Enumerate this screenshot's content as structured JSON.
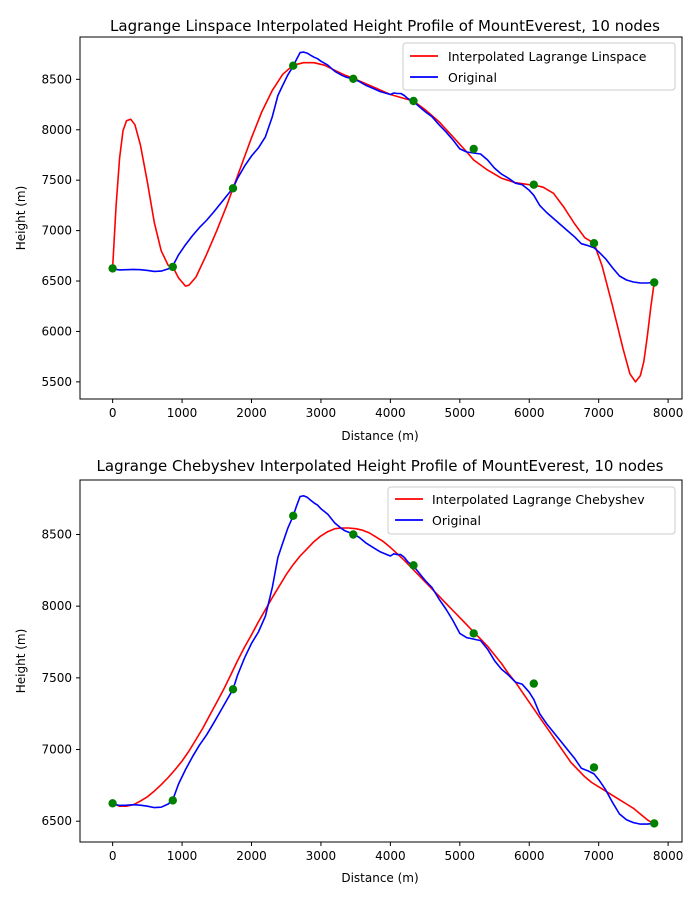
{
  "colors": {
    "interpolated": "#ff0000",
    "original": "#0000ff",
    "nodes": "#008000"
  },
  "chart_data": [
    {
      "type": "line",
      "title": "Lagrange Linspace Interpolated Height Profile of MountEverest, 10 nodes",
      "xlabel": "Distance (m)",
      "ylabel": "Height (m)",
      "xlim": [
        -470,
        8200
      ],
      "ylim": [
        5330,
        8920
      ],
      "xticks": [
        0,
        1000,
        2000,
        3000,
        4000,
        5000,
        6000,
        7000,
        8000
      ],
      "yticks": [
        5500,
        6000,
        6500,
        7000,
        7500,
        8000,
        8500
      ],
      "legend": "top-right",
      "series": [
        {
          "name": "Interpolated Lagrange Linspace",
          "color": "#ff0000",
          "x": [
            0,
            50,
            100,
            150,
            200,
            260,
            320,
            400,
            500,
            600,
            700,
            800,
            866,
            950,
            1050,
            1100,
            1200,
            1350,
            1500,
            1650,
            1733,
            1850,
            2000,
            2150,
            2300,
            2450,
            2600,
            2750,
            2900,
            3050,
            3200,
            3350,
            3466,
            3600,
            3800,
            4000,
            4200,
            4333,
            4500,
            4700,
            4900,
            5100,
            5200,
            5400,
            5600,
            5800,
            6000,
            6066,
            6200,
            6350,
            6500,
            6650,
            6800,
            6933,
            7050,
            7200,
            7350,
            7450,
            7530,
            7600,
            7650,
            7700,
            7750,
            7800
          ],
          "y": [
            6625,
            7250,
            7720,
            7990,
            8090,
            8105,
            8050,
            7850,
            7480,
            7080,
            6800,
            6655,
            6640,
            6530,
            6450,
            6460,
            6540,
            6760,
            7000,
            7260,
            7420,
            7640,
            7920,
            8180,
            8390,
            8550,
            8640,
            8665,
            8665,
            8640,
            8590,
            8540,
            8510,
            8470,
            8410,
            8350,
            8310,
            8285,
            8200,
            8080,
            7930,
            7780,
            7700,
            7600,
            7520,
            7475,
            7455,
            7452,
            7430,
            7370,
            7230,
            7070,
            6930,
            6875,
            6650,
            6250,
            5830,
            5580,
            5500,
            5560,
            5700,
            5950,
            6240,
            6485
          ]
        },
        {
          "name": "Original",
          "color": "#0000ff",
          "x": [
            0,
            100,
            200,
            300,
            400,
            500,
            600,
            700,
            800,
            866,
            950,
            1050,
            1150,
            1250,
            1350,
            1450,
            1550,
            1650,
            1733,
            1800,
            1900,
            2000,
            2100,
            2200,
            2300,
            2380,
            2450,
            2520,
            2600,
            2650,
            2700,
            2750,
            2800,
            2850,
            2900,
            2950,
            3000,
            3050,
            3100,
            3150,
            3200,
            3250,
            3300,
            3350,
            3400,
            3466,
            3550,
            3650,
            3750,
            3850,
            3950,
            4000,
            4050,
            4100,
            4150,
            4200,
            4250,
            4300,
            4333,
            4400,
            4500,
            4600,
            4700,
            4800,
            4900,
            5000,
            5100,
            5150,
            5200,
            5300,
            5400,
            5500,
            5600,
            5700,
            5800,
            5900,
            6000,
            6066,
            6150,
            6250,
            6350,
            6450,
            6550,
            6650,
            6750,
            6850,
            6933,
            7000,
            7100,
            7200,
            7300,
            7400,
            7500,
            7600,
            7700,
            7780
          ],
          "y": [
            6620,
            6610,
            6612,
            6615,
            6612,
            6605,
            6595,
            6598,
            6620,
            6650,
            6760,
            6860,
            6950,
            7030,
            7100,
            7180,
            7265,
            7350,
            7420,
            7520,
            7640,
            7740,
            7820,
            7930,
            8130,
            8340,
            8440,
            8540,
            8630,
            8700,
            8765,
            8770,
            8760,
            8740,
            8720,
            8705,
            8680,
            8660,
            8640,
            8610,
            8580,
            8560,
            8540,
            8525,
            8515,
            8505,
            8480,
            8440,
            8410,
            8380,
            8360,
            8350,
            8365,
            8360,
            8360,
            8340,
            8310,
            8290,
            8280,
            8240,
            8180,
            8130,
            8050,
            7980,
            7900,
            7810,
            7780,
            7775,
            7770,
            7760,
            7700,
            7620,
            7560,
            7520,
            7470,
            7455,
            7400,
            7350,
            7250,
            7180,
            7120,
            7060,
            7000,
            6940,
            6870,
            6850,
            6830,
            6790,
            6720,
            6630,
            6550,
            6510,
            6490,
            6480,
            6480,
            6485
          ]
        }
      ],
      "nodes": {
        "x": [
          0,
          866,
          1733,
          2600,
          3466,
          4333,
          5200,
          6066,
          6933,
          7800
        ],
        "y": [
          6625,
          6640,
          7420,
          8635,
          8505,
          8285,
          7810,
          7455,
          6875,
          6485
        ]
      }
    },
    {
      "type": "line",
      "title": "Lagrange Chebyshev Interpolated Height Profile of MountEverest, 10 nodes",
      "xlabel": "Distance (m)",
      "ylabel": "Height (m)",
      "xlim": [
        -470,
        8200
      ],
      "ylim": [
        6355,
        8880
      ],
      "xticks": [
        0,
        1000,
        2000,
        3000,
        4000,
        5000,
        6000,
        7000,
        8000
      ],
      "yticks": [
        6500,
        7000,
        7500,
        8000,
        8500
      ],
      "legend": "top-right",
      "series": [
        {
          "name": "Interpolated Lagrange Chebyshev",
          "color": "#ff0000",
          "x": [
            0,
            100,
            200,
            300,
            400,
            500,
            600,
            700,
            800,
            900,
            1000,
            1100,
            1200,
            1300,
            1400,
            1500,
            1600,
            1700,
            1800,
            1900,
            2000,
            2100,
            2200,
            2300,
            2400,
            2500,
            2600,
            2700,
            2800,
            2900,
            3000,
            3100,
            3200,
            3300,
            3400,
            3500,
            3600,
            3700,
            3800,
            3900,
            4000,
            4100,
            4200,
            4300,
            4400,
            4500,
            4600,
            4700,
            4800,
            4900,
            5000,
            5100,
            5200,
            5300,
            5400,
            5500,
            5600,
            5700,
            5800,
            5900,
            6000,
            6100,
            6200,
            6300,
            6400,
            6500,
            6600,
            6700,
            6800,
            6900,
            7000,
            7100,
            7200,
            7300,
            7400,
            7500,
            7600,
            7700,
            7800
          ],
          "y": [
            6625,
            6605,
            6605,
            6615,
            6640,
            6670,
            6710,
            6755,
            6805,
            6860,
            6920,
            6990,
            7070,
            7150,
            7240,
            7330,
            7420,
            7520,
            7620,
            7715,
            7800,
            7890,
            7975,
            8060,
            8140,
            8220,
            8290,
            8350,
            8400,
            8450,
            8490,
            8520,
            8540,
            8545,
            8545,
            8540,
            8530,
            8510,
            8480,
            8450,
            8410,
            8365,
            8320,
            8270,
            8220,
            8170,
            8120,
            8070,
            8020,
            7970,
            7920,
            7870,
            7820,
            7770,
            7720,
            7660,
            7600,
            7530,
            7470,
            7400,
            7330,
            7260,
            7190,
            7120,
            7050,
            6980,
            6910,
            6860,
            6810,
            6770,
            6740,
            6710,
            6680,
            6650,
            6620,
            6590,
            6550,
            6510,
            6480
          ]
        },
        {
          "name": "Original",
          "color": "#0000ff",
          "x": [
            0,
            100,
            200,
            300,
            400,
            500,
            600,
            700,
            800,
            866,
            950,
            1050,
            1150,
            1250,
            1350,
            1450,
            1550,
            1650,
            1733,
            1800,
            1900,
            2000,
            2100,
            2200,
            2300,
            2380,
            2450,
            2520,
            2600,
            2650,
            2700,
            2750,
            2800,
            2850,
            2900,
            2950,
            3000,
            3050,
            3100,
            3150,
            3200,
            3250,
            3300,
            3350,
            3400,
            3466,
            3550,
            3650,
            3750,
            3850,
            3950,
            4000,
            4050,
            4100,
            4150,
            4200,
            4250,
            4300,
            4333,
            4400,
            4500,
            4600,
            4700,
            4800,
            4900,
            5000,
            5100,
            5150,
            5200,
            5300,
            5400,
            5500,
            5600,
            5700,
            5800,
            5900,
            6000,
            6066,
            6150,
            6250,
            6350,
            6450,
            6550,
            6650,
            6750,
            6850,
            6933,
            7000,
            7100,
            7200,
            7300,
            7400,
            7500,
            7600,
            7700,
            7780
          ],
          "y": [
            6620,
            6610,
            6612,
            6615,
            6612,
            6605,
            6595,
            6598,
            6620,
            6650,
            6760,
            6860,
            6950,
            7030,
            7100,
            7180,
            7265,
            7350,
            7420,
            7520,
            7640,
            7740,
            7820,
            7930,
            8130,
            8340,
            8440,
            8540,
            8630,
            8700,
            8765,
            8770,
            8760,
            8740,
            8720,
            8705,
            8680,
            8660,
            8640,
            8610,
            8580,
            8560,
            8540,
            8525,
            8515,
            8505,
            8480,
            8440,
            8410,
            8380,
            8360,
            8350,
            8365,
            8360,
            8360,
            8340,
            8310,
            8290,
            8280,
            8240,
            8180,
            8130,
            8050,
            7980,
            7900,
            7810,
            7780,
            7775,
            7770,
            7760,
            7700,
            7620,
            7560,
            7520,
            7470,
            7455,
            7400,
            7350,
            7250,
            7180,
            7120,
            7060,
            7000,
            6940,
            6870,
            6850,
            6830,
            6790,
            6720,
            6630,
            6550,
            6510,
            6490,
            6480,
            6480,
            6485
          ]
        }
      ],
      "nodes": {
        "x": [
          0,
          866,
          1733,
          2600,
          3466,
          4333,
          5200,
          6066,
          6933,
          7800
        ],
        "y": [
          6625,
          6645,
          7420,
          8630,
          8500,
          8285,
          7810,
          7460,
          6875,
          6485
        ]
      }
    }
  ]
}
